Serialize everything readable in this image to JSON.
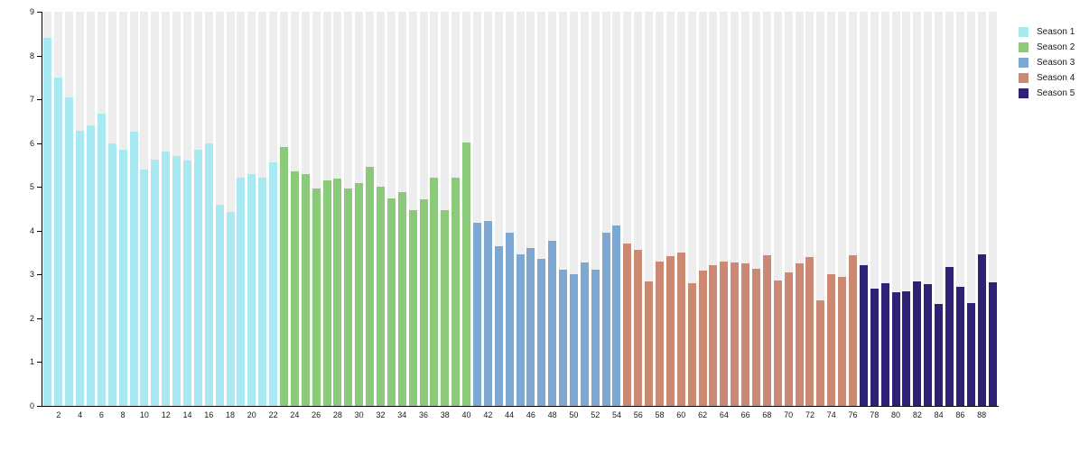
{
  "chart_data": {
    "type": "bar",
    "title": "",
    "xlabel": "",
    "ylabel": "",
    "ylim": [
      0,
      9
    ],
    "yticks": [
      0,
      1,
      2,
      3,
      4,
      5,
      6,
      7,
      8,
      9
    ],
    "xtick_labels": [
      2,
      4,
      6,
      8,
      10,
      12,
      14,
      16,
      18,
      20,
      22,
      24,
      26,
      28,
      30,
      32,
      34,
      36,
      38,
      40,
      42,
      44,
      46,
      48,
      50,
      52,
      54,
      56,
      58,
      60,
      62,
      64,
      66,
      68,
      70,
      72,
      74,
      76,
      78,
      80,
      82,
      84,
      86,
      88
    ],
    "x_unit": "episode",
    "total_episodes": 89,
    "grid": false,
    "background_column_color": "#ededed",
    "legend_position": "top-right",
    "series": [
      {
        "name": "Season 1",
        "color": "#a9eaf2",
        "start_episode": 1,
        "end_episode": 22,
        "values": [
          8.4,
          7.5,
          7.05,
          6.28,
          6.4,
          6.67,
          6.0,
          5.85,
          6.27,
          5.4,
          5.62,
          5.8,
          5.7,
          5.6,
          5.85,
          6.0,
          4.6,
          4.43,
          5.22,
          5.3,
          5.22,
          5.57
        ]
      },
      {
        "name": "Season 2",
        "color": "#8bc97b",
        "start_episode": 23,
        "end_episode": 40,
        "values": [
          5.92,
          5.35,
          5.3,
          4.97,
          5.15,
          5.2,
          4.97,
          5.08,
          5.46,
          5.0,
          4.73,
          4.88,
          4.47,
          4.72,
          5.21,
          4.47,
          5.22,
          6.02
        ]
      },
      {
        "name": "Season 3",
        "color": "#7ea8d1",
        "start_episode": 41,
        "end_episode": 54,
        "values": [
          4.18,
          4.23,
          3.65,
          3.96,
          3.45,
          3.61,
          3.35,
          3.76,
          3.11,
          3.01,
          3.27,
          3.1,
          3.96,
          4.11
        ]
      },
      {
        "name": "Season 4",
        "color": "#cb8973",
        "start_episode": 55,
        "end_episode": 76,
        "values": [
          3.7,
          3.56,
          2.85,
          3.3,
          3.42,
          3.51,
          2.81,
          3.08,
          3.22,
          3.3,
          3.28,
          3.25,
          3.14,
          3.44,
          2.87,
          3.04,
          3.25,
          3.39,
          2.42,
          3.0,
          2.95,
          3.43
        ]
      },
      {
        "name": "Season 5",
        "color": "#2d2276",
        "start_episode": 77,
        "end_episode": 89,
        "values": [
          3.21,
          2.67,
          2.8,
          2.6,
          2.61,
          2.84,
          2.78,
          2.33,
          3.18,
          2.72,
          2.34,
          3.47,
          2.83
        ]
      }
    ]
  }
}
